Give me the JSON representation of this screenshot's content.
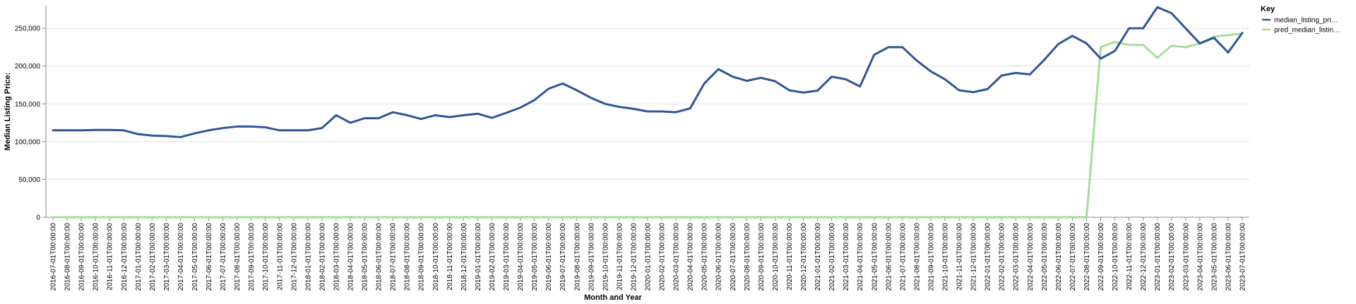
{
  "chart_data": {
    "type": "line",
    "xlabel": "Month and Year",
    "ylabel": "Median Listing Price:",
    "ylim": [
      0,
      280000
    ],
    "yticks": [
      0,
      50000,
      100000,
      150000,
      200000,
      250000
    ],
    "ytick_labels": [
      "0",
      "50,000",
      "100,000",
      "150,000",
      "200,000",
      "250,000"
    ],
    "grid": "horizontal",
    "legend": {
      "title": "Key",
      "placement": "top-right"
    },
    "categories": [
      "2016-07-01T00:00:00",
      "2016-08-01T00:00:00",
      "2016-09-01T00:00:00",
      "2016-10-01T00:00:00",
      "2016-11-01T00:00:00",
      "2016-12-01T00:00:00",
      "2017-01-01T00:00:00",
      "2017-02-01T00:00:00",
      "2017-03-01T00:00:00",
      "2017-04-01T00:00:00",
      "2017-05-01T00:00:00",
      "2017-06-01T00:00:00",
      "2017-07-01T00:00:00",
      "2017-08-01T00:00:00",
      "2017-09-01T00:00:00",
      "2017-10-01T00:00:00",
      "2017-11-01T00:00:00",
      "2017-12-01T00:00:00",
      "2018-01-01T00:00:00",
      "2018-02-01T00:00:00",
      "2018-03-01T00:00:00",
      "2018-04-01T00:00:00",
      "2018-05-01T00:00:00",
      "2018-06-01T00:00:00",
      "2018-07-01T00:00:00",
      "2018-08-01T00:00:00",
      "2018-09-01T00:00:00",
      "2018-10-01T00:00:00",
      "2018-11-01T00:00:00",
      "2018-12-01T00:00:00",
      "2019-01-01T00:00:00",
      "2019-02-01T00:00:00",
      "2019-03-01T00:00:00",
      "2019-04-01T00:00:00",
      "2019-05-01T00:00:00",
      "2019-06-01T00:00:00",
      "2019-07-01T00:00:00",
      "2019-08-01T00:00:00",
      "2019-09-01T00:00:00",
      "2019-10-01T00:00:00",
      "2019-11-01T00:00:00",
      "2019-12-01T00:00:00",
      "2020-01-01T00:00:00",
      "2020-02-01T00:00:00",
      "2020-03-01T00:00:00",
      "2020-04-01T00:00:00",
      "2020-05-01T00:00:00",
      "2020-06-01T00:00:00",
      "2020-07-01T00:00:00",
      "2020-08-01T00:00:00",
      "2020-09-01T00:00:00",
      "2020-10-01T00:00:00",
      "2020-11-01T00:00:00",
      "2020-12-01T00:00:00",
      "2021-01-01T00:00:00",
      "2021-02-01T00:00:00",
      "2021-03-01T00:00:00",
      "2021-04-01T00:00:00",
      "2021-05-01T00:00:00",
      "2021-06-01T00:00:00",
      "2021-07-01T00:00:00",
      "2021-08-01T00:00:00",
      "2021-09-01T00:00:00",
      "2021-10-01T00:00:00",
      "2021-11-01T00:00:00",
      "2021-12-01T00:00:00",
      "2022-01-01T00:00:00",
      "2022-02-01T00:00:00",
      "2022-03-01T00:00:00",
      "2022-04-01T00:00:00",
      "2022-05-01T00:00:00",
      "2022-06-01T00:00:00",
      "2022-07-01T00:00:00",
      "2022-08-01T00:00:00",
      "2022-09-01T00:00:00",
      "2022-10-01T00:00:00",
      "2022-11-01T00:00:00",
      "2022-12-01T00:00:00",
      "2023-01-01T00:00:00",
      "2023-02-01T00:00:00",
      "2023-03-01T00:00:00",
      "2023-04-01T00:00:00",
      "2023-05-01T00:00:00",
      "2023-06-01T00:00:00",
      "2023-07-01T00:00:00"
    ],
    "series": [
      {
        "name": "median_listing_pri…",
        "color": "#2f5597",
        "values": [
          115000,
          115000,
          115000,
          115500,
          115500,
          115000,
          110000,
          108000,
          107500,
          106000,
          111000,
          115000,
          118000,
          120000,
          120000,
          119000,
          115000,
          115000,
          115000,
          118000,
          135000,
          125000,
          131000,
          131000,
          139000,
          135000,
          130000,
          135000,
          132500,
          135000,
          137000,
          131500,
          138000,
          145000,
          155000,
          170000,
          177000,
          168000,
          158000,
          150000,
          146000,
          143500,
          140000,
          140000,
          139000,
          144000,
          177000,
          196000,
          186000,
          180500,
          184500,
          180000,
          168000,
          165000,
          167500,
          186000,
          182500,
          173000,
          215000,
          225000,
          225000,
          207500,
          193000,
          182500,
          168000,
          165500,
          169500,
          187500,
          191000,
          189000,
          208000,
          229000,
          240000,
          230000,
          210000,
          220000,
          250000,
          250000,
          278000,
          270000,
          250000,
          230000,
          237500,
          218000,
          244000
        ]
      },
      {
        "name": "pred_median_listin…",
        "color": "#a6dc9c",
        "values": [
          0,
          0,
          0,
          0,
          0,
          0,
          0,
          0,
          0,
          0,
          0,
          0,
          0,
          0,
          0,
          0,
          0,
          0,
          0,
          0,
          0,
          0,
          0,
          0,
          0,
          0,
          0,
          0,
          0,
          0,
          0,
          0,
          0,
          0,
          0,
          0,
          0,
          0,
          0,
          0,
          0,
          0,
          0,
          0,
          0,
          0,
          0,
          0,
          0,
          0,
          0,
          0,
          0,
          0,
          0,
          0,
          0,
          0,
          0,
          0,
          0,
          0,
          0,
          0,
          0,
          0,
          0,
          0,
          0,
          0,
          0,
          0,
          0,
          0,
          225000,
          232000,
          228000,
          228000,
          211000,
          227000,
          225000,
          230000,
          239000,
          241000,
          243000
        ]
      }
    ]
  }
}
